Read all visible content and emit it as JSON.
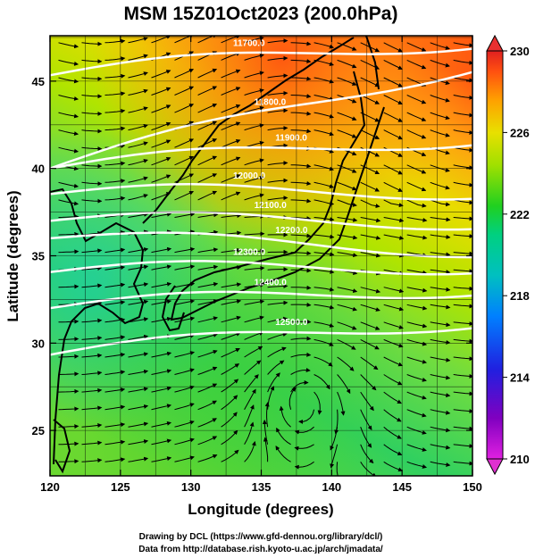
{
  "chart_data": {
    "type": "heatmap",
    "title": "MSM 15Z01Oct2023 (200.0hPa)",
    "xlabel": "Longitude (degrees)",
    "ylabel": "Latitude  (degrees)",
    "xlim": [
      120,
      150
    ],
    "ylim": [
      22.4,
      47.6
    ],
    "x_ticks": [
      "120",
      "125",
      "130",
      "135",
      "140",
      "145",
      "150"
    ],
    "x_tick_values": [
      120,
      125,
      130,
      135,
      140,
      145,
      150
    ],
    "y_ticks": [
      "25",
      "30",
      "35",
      "40",
      "45"
    ],
    "y_tick_values": [
      25,
      30,
      35,
      40,
      45
    ],
    "colorbar": {
      "min": 210,
      "max": 230,
      "tick_labels": [
        "210",
        "214",
        "218",
        "222",
        "226",
        "230"
      ],
      "tick_values": [
        210,
        214,
        218,
        222,
        226,
        230
      ],
      "colors": [
        "#e020e0",
        "#8000c0",
        "#2020e0",
        "#0080ff",
        "#00c0c0",
        "#00d080",
        "#20d020",
        "#a0e000",
        "#e8e000",
        "#ffa000",
        "#ff5010",
        "#e02020"
      ]
    },
    "field_colors": {
      "warm": "#ff6a10",
      "mid": "#c8e400",
      "cool": "#22d080",
      "contour": "#ffffff",
      "coast": "#000000",
      "grid": "#000000"
    },
    "contours": [
      {
        "label": "11700.0",
        "lat_at_130": 46.0,
        "lat_at_145": 47.0
      },
      {
        "label": "11800.0",
        "lat_at_130": 42.0,
        "lat_at_145": 45.0
      },
      {
        "label": "11900.0",
        "lat_at_130": 40.6,
        "lat_at_145": 41.5
      },
      {
        "label": "12000.0",
        "lat_at_130": 38.6,
        "lat_at_145": 38.7
      },
      {
        "label": "12100.0",
        "lat_at_130": 37.0,
        "lat_at_145": 37.0
      },
      {
        "label": "12200.0",
        "lat_at_130": 35.8,
        "lat_at_145": 35.5
      },
      {
        "label": "12300.0",
        "lat_at_130": 34.2,
        "lat_at_145": 34.4
      },
      {
        "label": "12400.0",
        "lat_at_130": 32.4,
        "lat_at_145": 33.0
      },
      {
        "label": "12500.0",
        "lat_at_130": 30.0,
        "lat_at_145": 31.0
      }
    ]
  },
  "credits": {
    "line1": "Drawing by DCL (https://www.gfd-dennou.org/library/dcl/)",
    "line2": "Data from http://database.rish.kyoto-u.ac.jp/arch/jmadata/"
  }
}
